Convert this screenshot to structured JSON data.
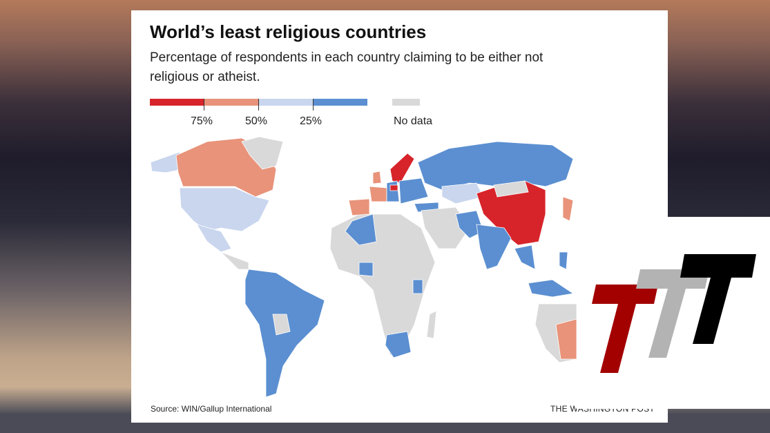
{
  "title": "World’s least religious countries",
  "subtitle": "Percentage of respondents in each country claiming to be either not religious or atheist.",
  "legend": {
    "ticks": [
      "75%",
      "50%",
      "25%"
    ],
    "no_data_label": "No data",
    "colors": {
      "over_75": "#d7242b",
      "50_75": "#e8937a",
      "25_50": "#c9d6ee",
      "under_25": "#5b8fd1",
      "no_data": "#d9d9d9"
    }
  },
  "map": {
    "regions": [
      {
        "name": "Canada",
        "class": "50_75"
      },
      {
        "name": "United States",
        "class": "25_50"
      },
      {
        "name": "China",
        "class": "over_75"
      },
      {
        "name": "Sweden",
        "class": "over_75"
      },
      {
        "name": "Czech Republic",
        "class": "over_75"
      },
      {
        "name": "Russia",
        "class": "under_25"
      },
      {
        "name": "Japan",
        "class": "50_75"
      },
      {
        "name": "Australia",
        "class": "50_75"
      },
      {
        "name": "France",
        "class": "50_75"
      },
      {
        "name": "Spain",
        "class": "50_75"
      },
      {
        "name": "Brazil",
        "class": "under_25"
      },
      {
        "name": "India",
        "class": "under_25"
      }
    ]
  },
  "source": "Source: WIN/Gallup International",
  "credit": "THE WASHINGTON POST",
  "logo": {
    "colors": [
      "#a30000",
      "#b3b3b3",
      "#000000"
    ]
  }
}
